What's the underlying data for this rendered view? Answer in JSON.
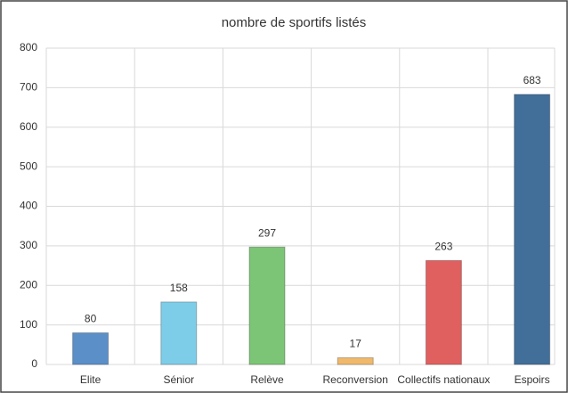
{
  "chart_data": {
    "type": "bar",
    "title": "nombre de sportifs listés",
    "categories": [
      "Elite",
      "Sénior",
      "Relève",
      "Reconversion",
      "Collectifs nationaux",
      "Espoirs"
    ],
    "values": [
      80,
      158,
      297,
      17,
      263,
      683
    ],
    "colors": [
      "#5b8fc7",
      "#7ecde8",
      "#7cc576",
      "#f0b86a",
      "#e06060",
      "#426f99"
    ],
    "ylim": [
      0,
      800
    ],
    "yticks": [
      0,
      100,
      200,
      300,
      400,
      500,
      600,
      700,
      800
    ],
    "grid": true
  }
}
